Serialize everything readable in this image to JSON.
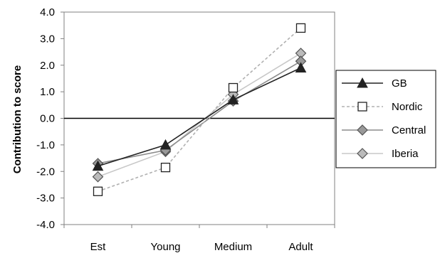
{
  "chart_data": {
    "type": "line",
    "categories": [
      "Est",
      "Young",
      "Medium",
      "Adult"
    ],
    "ylabel": "Contribution to score",
    "ylim": [
      -4.0,
      4.0
    ],
    "ytick_labels": [
      "4.0",
      "3.0",
      "2.0",
      "1.0",
      "0.0",
      "-1.0",
      "-2.0",
      "-3.0",
      "-4.0"
    ],
    "zero_line": true,
    "grid": false,
    "legend_position": "right",
    "series": [
      {
        "name": "GB",
        "values": [
          -1.8,
          -1.0,
          0.7,
          1.9
        ],
        "color": "#222222",
        "line": "solid",
        "marker": "triangle-filled",
        "marker_fill": "#222222"
      },
      {
        "name": "Nordic",
        "values": [
          -2.75,
          -1.85,
          1.15,
          3.4
        ],
        "color": "#b0b0b0",
        "line": "dashed",
        "marker": "square-open",
        "marker_fill": "#ffffff"
      },
      {
        "name": "Central",
        "values": [
          -1.7,
          -1.2,
          0.65,
          2.15
        ],
        "color": "#8c8c8c",
        "line": "solid",
        "marker": "diamond-filled",
        "marker_fill": "#999999"
      },
      {
        "name": "Iberia",
        "values": [
          -2.2,
          -1.25,
          0.9,
          2.45
        ],
        "color": "#c8c8c8",
        "line": "solid",
        "marker": "diamond-filled",
        "marker_fill": "#bbbbbb"
      }
    ]
  }
}
